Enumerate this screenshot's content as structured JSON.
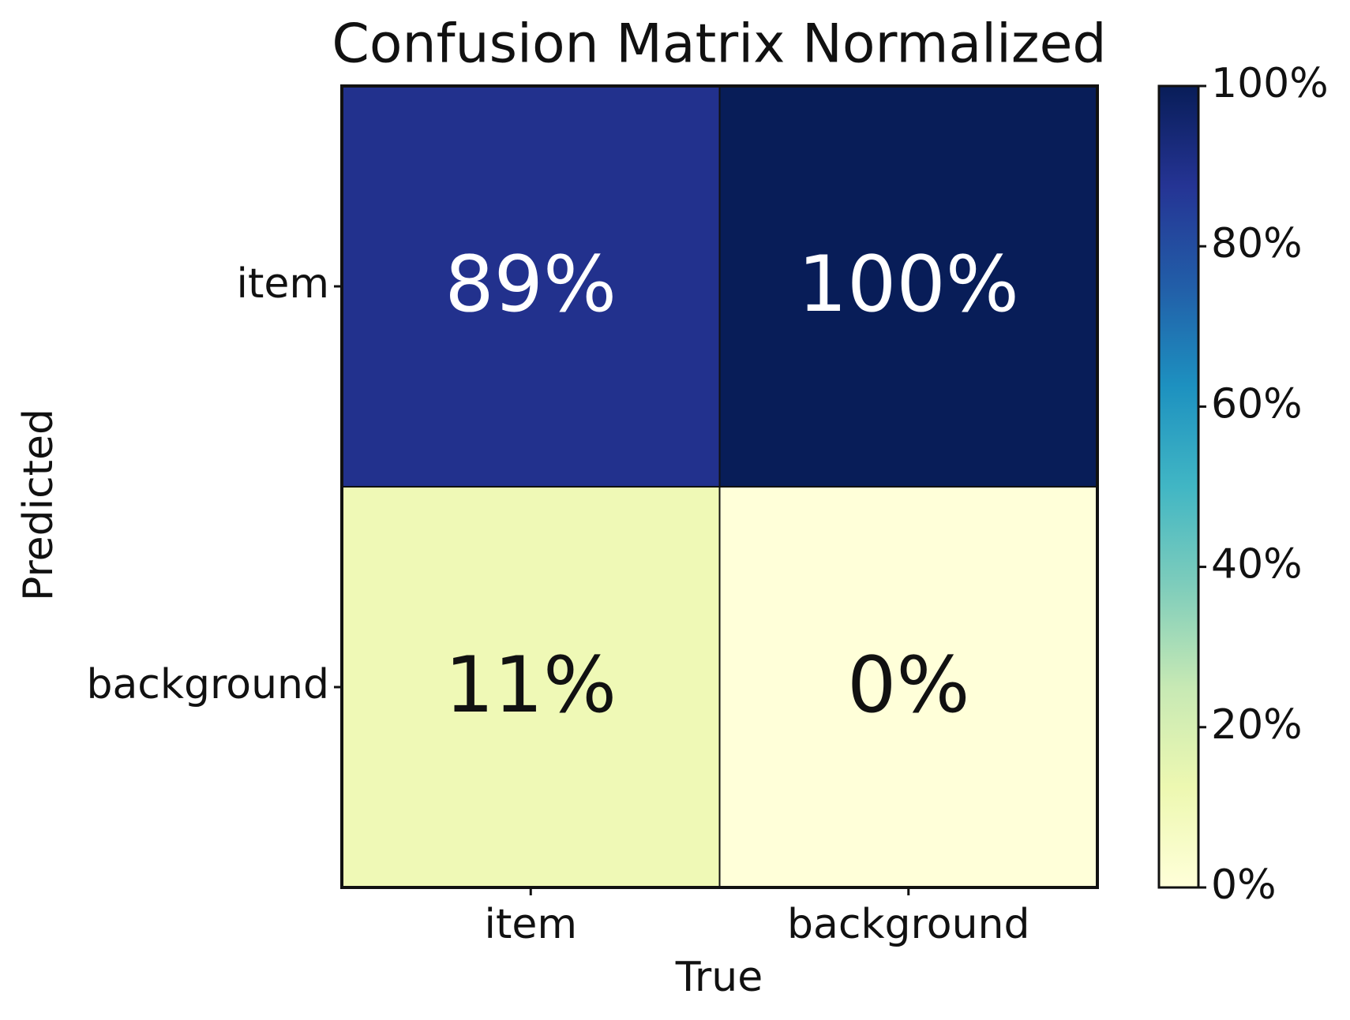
{
  "chart_data": {
    "type": "heatmap",
    "title": "Confusion Matrix Normalized",
    "x_label": "True",
    "y_label": "Predicted",
    "x_categories": [
      "item",
      "background"
    ],
    "y_categories": [
      "item",
      "background"
    ],
    "values": [
      [
        89,
        100
      ],
      [
        11,
        0
      ]
    ],
    "value_labels": [
      [
        "89%",
        "100%"
      ],
      [
        "11%",
        "0%"
      ]
    ],
    "colormap": "YlGnBu",
    "clim": [
      0,
      100
    ],
    "cticks": [
      {
        "value": 0,
        "label": "0%"
      },
      {
        "value": 20,
        "label": "20%"
      },
      {
        "value": 40,
        "label": "40%"
      },
      {
        "value": 60,
        "label": "60%"
      },
      {
        "value": 80,
        "label": "80%"
      },
      {
        "value": 100,
        "label": "100%"
      }
    ]
  }
}
